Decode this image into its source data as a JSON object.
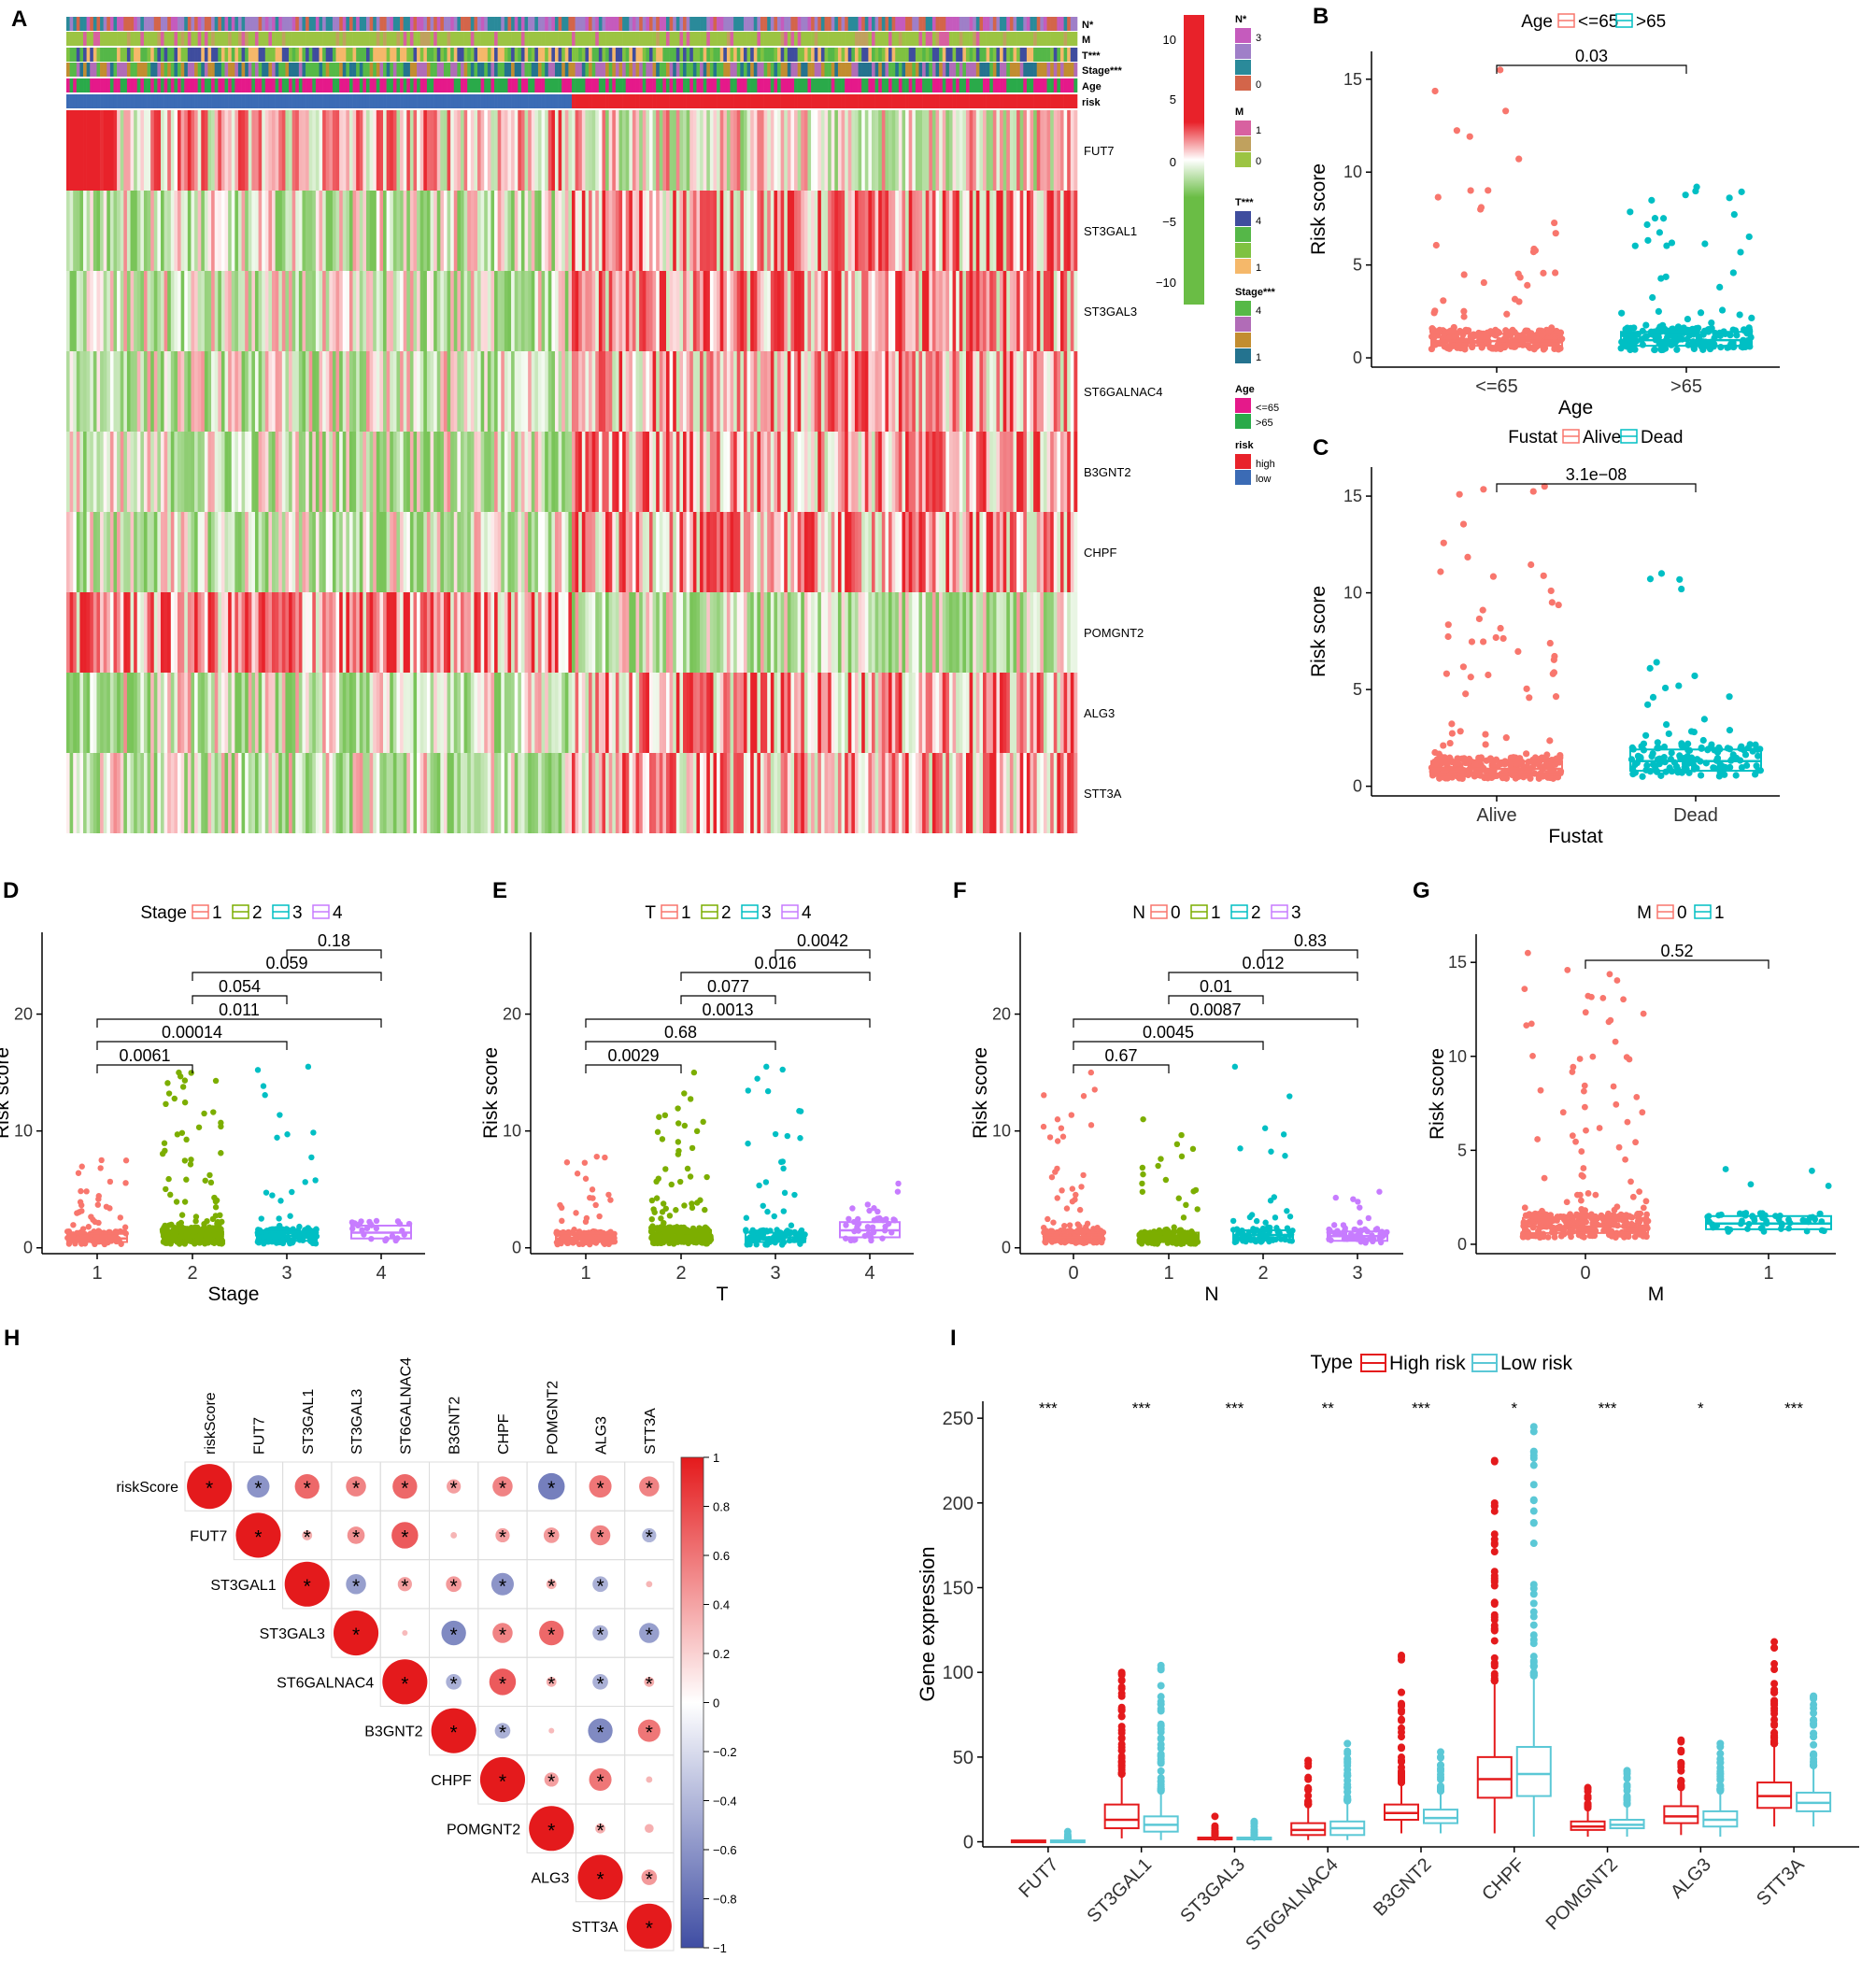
{
  "colors": {
    "red": "#e41a1c",
    "salmon": "#f8766d",
    "teal": "#00bfc4",
    "green": "#7cae00",
    "purple": "#c77cff",
    "heat_high": "#e8222a",
    "heat_low": "#6abd45",
    "corr_pos": "#e41a1c",
    "corr_neg": "#3f4da3",
    "risk_high": "#e8222a",
    "risk_low": "#3b6bb5",
    "age_le65": "#e5198a",
    "age_gt65": "#2aaa4a",
    "box_high": "#e41a1c",
    "box_low": "#5bc8d6"
  },
  "panels": {
    "A": {
      "letter": "A",
      "annotations": [
        "N*",
        "M",
        "T***",
        "Stage***",
        "Age",
        "risk"
      ],
      "genes": [
        "FUT7",
        "ST3GAL1",
        "ST3GAL3",
        "ST6GALNAC4",
        "B3GNT2",
        "CHPF",
        "POMGNT2",
        "ALG3",
        "STT3A"
      ],
      "colorbar_ticks": [
        "10",
        "5",
        "0",
        "−5",
        "−10"
      ],
      "legend": [
        {
          "title": "N*",
          "items": [
            "3",
            "0"
          ],
          "colors": [
            "#c55bbd",
            "#9f7fc8",
            "#2a8a9a",
            "#d3654a"
          ]
        },
        {
          "title": "M",
          "items": [
            "1",
            "0"
          ],
          "colors": [
            "#d861a0",
            "#c0a15e",
            "#9cc443"
          ]
        },
        {
          "title": "T***",
          "items": [
            "4",
            "1"
          ],
          "colors": [
            "#3f4d9e",
            "#55b748",
            "#7fc241",
            "#f5b86a"
          ]
        },
        {
          "title": "Stage***",
          "items": [
            "4",
            "1"
          ],
          "colors": [
            "#56b947",
            "#b16cb7",
            "#c28d30",
            "#24738f"
          ]
        },
        {
          "title": "Age",
          "items": [
            "<=65",
            ">65"
          ],
          "colors": [
            "#e5198a",
            "#2aaa4a"
          ]
        },
        {
          "title": "risk",
          "items": [
            "high",
            "low"
          ],
          "colors": [
            "#e8222a",
            "#3b6bb5"
          ]
        }
      ]
    },
    "B": {
      "letter": "B",
      "legend_title": "Age",
      "legend_items": [
        "<=65",
        ">65"
      ],
      "pvalue": "0.03",
      "ylabel": "Risk score",
      "xlabel": "Age",
      "yticks": [
        "0",
        "5",
        "10",
        "15"
      ]
    },
    "C": {
      "letter": "C",
      "legend_title": "Fustat",
      "legend_items": [
        "Alive",
        "Dead"
      ],
      "pvalue": "3.1e−08",
      "ylabel": "Risk score",
      "xlabel": "Fustat",
      "yticks": [
        "0",
        "5",
        "10",
        "15"
      ]
    },
    "D": {
      "letter": "D",
      "legend_title": "Stage",
      "legend_items": [
        "1",
        "2",
        "3",
        "4"
      ],
      "ylabel": "Risk score",
      "xlabel": "Stage",
      "yticks": [
        "0",
        "10",
        "20"
      ],
      "pvalues": [
        "0.18",
        "0.059",
        "0.054",
        "0.011",
        "0.00014",
        "0.0061"
      ]
    },
    "E": {
      "letter": "E",
      "legend_title": "T",
      "legend_items": [
        "1",
        "2",
        "3",
        "4"
      ],
      "ylabel": "Risk score",
      "xlabel": "T",
      "yticks": [
        "0",
        "10",
        "20"
      ],
      "pvalues": [
        "0.0042",
        "0.016",
        "0.077",
        "0.0013",
        "0.68",
        "0.0029"
      ]
    },
    "F": {
      "letter": "F",
      "legend_title": "N",
      "legend_items": [
        "0",
        "1",
        "2",
        "3"
      ],
      "ylabel": "Risk score",
      "xlabel": "N",
      "yticks": [
        "0",
        "10",
        "20"
      ],
      "pvalues": [
        "0.83",
        "0.012",
        "0.01",
        "0.0087",
        "0.0045",
        "0.67"
      ]
    },
    "G": {
      "letter": "G",
      "legend_title": "M",
      "legend_items": [
        "0",
        "1"
      ],
      "ylabel": "Risk score",
      "xlabel": "M",
      "yticks": [
        "0",
        "5",
        "10",
        "15"
      ],
      "pvalues": [
        "0.52"
      ]
    },
    "H": {
      "letter": "H",
      "labels": [
        "riskScore",
        "FUT7",
        "ST3GAL1",
        "ST3GAL3",
        "ST6GALNAC4",
        "B3GNT2",
        "CHPF",
        "POMGNT2",
        "ALG3",
        "STT3A"
      ],
      "colorbar_ticks": [
        "1",
        "0.8",
        "0.6",
        "0.4",
        "0.2",
        "0",
        "−0.2",
        "−0.4",
        "−0.6",
        "−0.8",
        "−1"
      ],
      "star": "*"
    },
    "I": {
      "letter": "I",
      "legend_title": "Type",
      "legend_items": [
        "High risk",
        "Low risk"
      ],
      "ylabel": "Gene expression",
      "yticks": [
        "0",
        "50",
        "100",
        "150",
        "200",
        "250"
      ],
      "genes": [
        "FUT7",
        "ST3GAL1",
        "ST3GAL3",
        "ST6GALNAC4",
        "B3GNT2",
        "CHPF",
        "POMGNT2",
        "ALG3",
        "STT3A"
      ],
      "signif": [
        "***",
        "***",
        "***",
        "**",
        "***",
        "*",
        "***",
        "*",
        "***"
      ]
    }
  },
  "chart_data": [
    {
      "type": "heatmap",
      "title": "A",
      "rows": [
        "FUT7",
        "ST3GAL1",
        "ST3GAL3",
        "ST6GALNAC4",
        "B3GNT2",
        "CHPF",
        "POMGNT2",
        "ALG3",
        "STT3A"
      ],
      "columns": "patients sorted by risk (low then high)",
      "color_range": [
        -10,
        10
      ],
      "annotations": [
        "N*",
        "M",
        "T***",
        "Stage***",
        "Age",
        "risk"
      ]
    },
    {
      "type": "scatter",
      "title": "B",
      "groups": [
        "<=65",
        ">65"
      ],
      "box_median": [
        0.9,
        0.95
      ],
      "box_q1": [
        0.65,
        0.65
      ],
      "box_q3": [
        1.3,
        1.4
      ],
      "max": [
        15.5,
        9.2
      ],
      "ylim": [
        -0.5,
        16.5
      ],
      "pvalue": "0.03"
    },
    {
      "type": "scatter",
      "title": "C",
      "groups": [
        "Alive",
        "Dead"
      ],
      "box_median": [
        0.9,
        1.3
      ],
      "box_q1": [
        0.6,
        0.8
      ],
      "box_q3": [
        1.3,
        1.9
      ],
      "max": [
        15.5,
        11.0
      ],
      "ylim": [
        -0.5,
        16.5
      ],
      "pvalue": "3.1e-08"
    },
    {
      "type": "scatter",
      "title": "D",
      "groups": [
        "1",
        "2",
        "3",
        "4"
      ],
      "box_median": [
        0.8,
        1.0,
        1.0,
        1.3
      ],
      "box_q1": [
        0.5,
        0.6,
        0.6,
        0.8
      ],
      "box_q3": [
        1.2,
        1.5,
        1.4,
        1.9
      ],
      "max": [
        7.5,
        15.0,
        15.5,
        2.3
      ],
      "ylim": [
        -0.5,
        27
      ],
      "comparisons": [
        [
          "3",
          "4",
          "0.18"
        ],
        [
          "2",
          "4",
          "0.059"
        ],
        [
          "2",
          "3",
          "0.054"
        ],
        [
          "1",
          "4",
          "0.011"
        ],
        [
          "1",
          "3",
          "0.00014"
        ],
        [
          "1",
          "2",
          "0.0061"
        ]
      ]
    },
    {
      "type": "scatter",
      "title": "E",
      "groups": [
        "1",
        "2",
        "3",
        "4"
      ],
      "box_median": [
        0.8,
        1.0,
        0.9,
        1.5
      ],
      "box_q1": [
        0.5,
        0.6,
        0.5,
        0.9
      ],
      "max": [
        7.8,
        15.0,
        15.5,
        5.5
      ],
      "box_q3": [
        1.2,
        1.5,
        1.3,
        2.2
      ],
      "ylim": [
        -0.5,
        27
      ],
      "comparisons": [
        [
          "3",
          "4",
          "0.0042"
        ],
        [
          "2",
          "4",
          "0.016"
        ],
        [
          "2",
          "3",
          "0.077"
        ],
        [
          "1",
          "4",
          "0.0013"
        ],
        [
          "1",
          "3",
          "0.68"
        ],
        [
          "1",
          "2",
          "0.0029"
        ]
      ]
    },
    {
      "type": "scatter",
      "title": "F",
      "groups": [
        "0",
        "1",
        "2",
        "3"
      ],
      "box_median": [
        0.9,
        0.9,
        1.1,
        1.0
      ],
      "box_q1": [
        0.6,
        0.55,
        0.7,
        0.6
      ],
      "box_q3": [
        1.3,
        1.3,
        1.5,
        1.4
      ],
      "max": [
        15.0,
        11.0,
        15.5,
        4.8
      ],
      "ylim": [
        -0.5,
        27
      ],
      "comparisons": [
        [
          "2",
          "3",
          "0.83"
        ],
        [
          "1",
          "3",
          "0.012"
        ],
        [
          "1",
          "2",
          "0.01"
        ],
        [
          "0",
          "3",
          "0.0087"
        ],
        [
          "0",
          "2",
          "0.0045"
        ],
        [
          "0",
          "1",
          "0.67"
        ]
      ]
    },
    {
      "type": "scatter",
      "title": "G",
      "groups": [
        "0",
        "1"
      ],
      "box_median": [
        0.95,
        1.1
      ],
      "box_q1": [
        0.6,
        0.8
      ],
      "box_q3": [
        1.4,
        1.5
      ],
      "max": [
        15.5,
        4.0
      ],
      "ylim": [
        -0.5,
        16.5
      ],
      "pvalue": "0.52"
    },
    {
      "type": "heatmap",
      "title": "H",
      "labels": [
        "riskScore",
        "FUT7",
        "ST3GAL1",
        "ST3GAL3",
        "ST6GALNAC4",
        "B3GNT2",
        "CHPF",
        "POMGNT2",
        "ALG3",
        "STT3A"
      ],
      "upper_triangle_correlations": [
        [
          1,
          -0.25,
          0.3,
          0.2,
          0.3,
          0.1,
          0.2,
          -0.35,
          0.25,
          0.2
        ],
        [
          null,
          1,
          0.05,
          0.15,
          0.35,
          0.02,
          0.1,
          0.12,
          0.2,
          -0.1
        ],
        [
          null,
          null,
          1,
          -0.2,
          0.1,
          0.12,
          -0.25,
          0.05,
          -0.12,
          0.02
        ],
        [
          null,
          null,
          null,
          1,
          0.0,
          -0.3,
          0.2,
          0.3,
          -0.12,
          -0.2
        ],
        [
          null,
          null,
          null,
          null,
          1,
          -0.12,
          0.35,
          0.05,
          -0.12,
          0.05
        ],
        [
          null,
          null,
          null,
          null,
          null,
          1,
          -0.12,
          0.0,
          -0.3,
          0.25
        ],
        [
          null,
          null,
          null,
          null,
          null,
          null,
          1,
          0.1,
          0.25,
          0.02
        ],
        [
          null,
          null,
          null,
          null,
          null,
          null,
          null,
          1,
          0.05,
          0.04
        ],
        [
          null,
          null,
          null,
          null,
          null,
          null,
          null,
          null,
          1,
          0.12
        ],
        [
          null,
          null,
          null,
          null,
          null,
          null,
          null,
          null,
          null,
          1
        ]
      ],
      "range": [
        -1,
        1
      ]
    },
    {
      "type": "bar",
      "subtype": "boxplot",
      "title": "I",
      "categories": [
        "FUT7",
        "ST3GAL1",
        "ST3GAL3",
        "ST6GALNAC4",
        "B3GNT2",
        "CHPF",
        "POMGNT2",
        "ALG3",
        "STT3A"
      ],
      "series": [
        {
          "name": "High risk",
          "median": [
            0.5,
            13,
            2,
            7,
            17,
            37,
            9,
            15,
            27
          ],
          "q1": [
            0.2,
            8,
            1.5,
            4,
            13,
            26,
            7,
            11,
            20
          ],
          "q3": [
            0.8,
            22,
            2.5,
            11,
            22,
            50,
            12,
            21,
            35
          ],
          "wmin": [
            0,
            2,
            0.5,
            1,
            5,
            5,
            3,
            4,
            9
          ],
          "wmax": [
            1.2,
            40,
            4,
            22,
            35,
            95,
            20,
            32,
            58
          ],
          "outlier_max": [
            1.5,
            100,
            15,
            48,
            110,
            225,
            32,
            60,
            118
          ]
        },
        {
          "name": "Low risk",
          "median": [
            0.5,
            10,
            2,
            8,
            14,
            40,
            10,
            13,
            23
          ],
          "q1": [
            0.2,
            6,
            1.5,
            4,
            11,
            27,
            8,
            9,
            18
          ],
          "q3": [
            0.8,
            15,
            2.5,
            12,
            19,
            56,
            13,
            18,
            29
          ],
          "wmin": [
            0,
            1,
            0.5,
            1,
            5,
            3,
            3,
            3,
            9
          ],
          "wmax": [
            1.5,
            30,
            4,
            24,
            30,
            98,
            22,
            30,
            45
          ],
          "outlier_max": [
            6,
            104,
            12,
            58,
            53,
            245,
            42,
            58,
            86
          ]
        }
      ],
      "ylabel": "Gene expression",
      "ylim": [
        -3,
        260
      ]
    }
  ]
}
